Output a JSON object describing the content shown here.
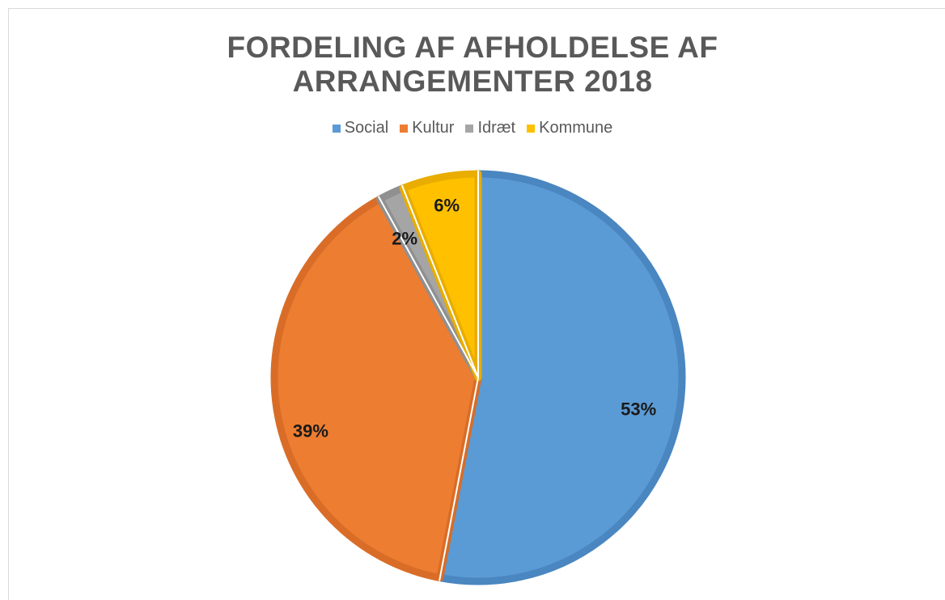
{
  "chart_data": {
    "type": "pie",
    "title_lines": [
      "FORDELING AF AFHOLDELSE AF",
      "ARRANGEMENTER 2018"
    ],
    "categories": [
      "Social",
      "Kultur",
      "Idræt",
      "Kommune"
    ],
    "values": [
      53,
      39,
      2,
      6
    ],
    "labels": [
      "53%",
      "39%",
      "2%",
      "6%"
    ],
    "colors": [
      "#5b9bd5",
      "#ed7d31",
      "#a5a5a5",
      "#ffc000"
    ],
    "border_colors": [
      "#4a86c0",
      "#d96d27",
      "#909090",
      "#e8ad00"
    ],
    "legend_position": "top"
  }
}
